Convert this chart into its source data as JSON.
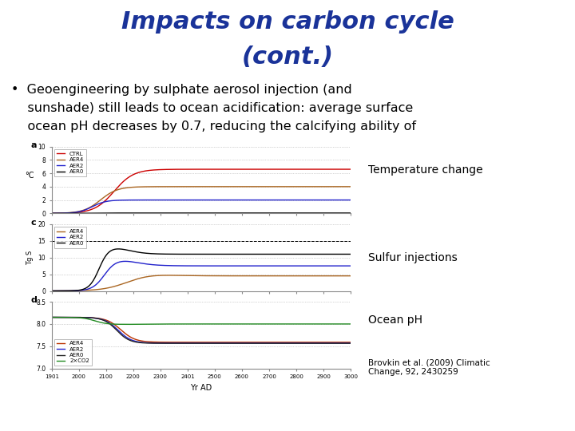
{
  "title_line1": "Impacts on carbon cycle",
  "title_line2": "(cont.)",
  "title_color": "#1a3399",
  "title_fontsize": 22,
  "bullet_text_line1": "•  Geoengineering by sulphate aerosol injection (and",
  "bullet_text_line2": "    sunshade) still leads to ocean acidification: average surface",
  "bullet_text_line3": "    ocean pH decreases by 0.7, reducing the calcifying ability of",
  "bullet_fontsize": 11.5,
  "label_a": "a",
  "label_c": "c",
  "label_d": "d",
  "panel_a": {
    "ylabel": "°C",
    "ylim": [
      0,
      10
    ],
    "yticks": [
      0,
      2,
      4,
      6,
      8,
      10
    ],
    "legend_entries": [
      "CTRL",
      "AER4",
      "AER2",
      "AER0"
    ],
    "colors": [
      "#cc0000",
      "#aa6622",
      "#2222cc",
      "#000000"
    ],
    "label": "Temperature change"
  },
  "panel_c": {
    "ylabel": "Tg S",
    "ylim": [
      0,
      20
    ],
    "yticks": [
      0,
      5,
      10,
      15,
      20
    ],
    "legend_entries": [
      "AER4",
      "AER2",
      "AER0"
    ],
    "colors": [
      "#aa6622",
      "#2222cc",
      "#000000"
    ],
    "label": "Sulfur injections"
  },
  "panel_d": {
    "ylabel": "",
    "ylim": [
      7.0,
      8.5
    ],
    "yticks": [
      7.0,
      7.5,
      8.0,
      8.5
    ],
    "legend_entries": [
      "AER4",
      "AER2",
      "AER0",
      "2×CO2"
    ],
    "colors": [
      "#bb3300",
      "#2222cc",
      "#222222",
      "#228B22"
    ],
    "label": "Ocean pH"
  },
  "xlabel": "Yr AD",
  "xmin": 1901,
  "xmax": 3000,
  "xticks": [
    1901,
    2000,
    2100,
    2200,
    2300,
    2401,
    2500,
    2600,
    2700,
    2800,
    2900,
    3000
  ],
  "xtick_labels": [
    "1901",
    "2000",
    "2100",
    "2200",
    "2300",
    "2401",
    "2500",
    "2600",
    "2700",
    "2800",
    "2900",
    "3000"
  ],
  "citation": "Brovkin et al. (2009) Climatic\nChange, 92, 2430259",
  "background_color": "#ffffff"
}
